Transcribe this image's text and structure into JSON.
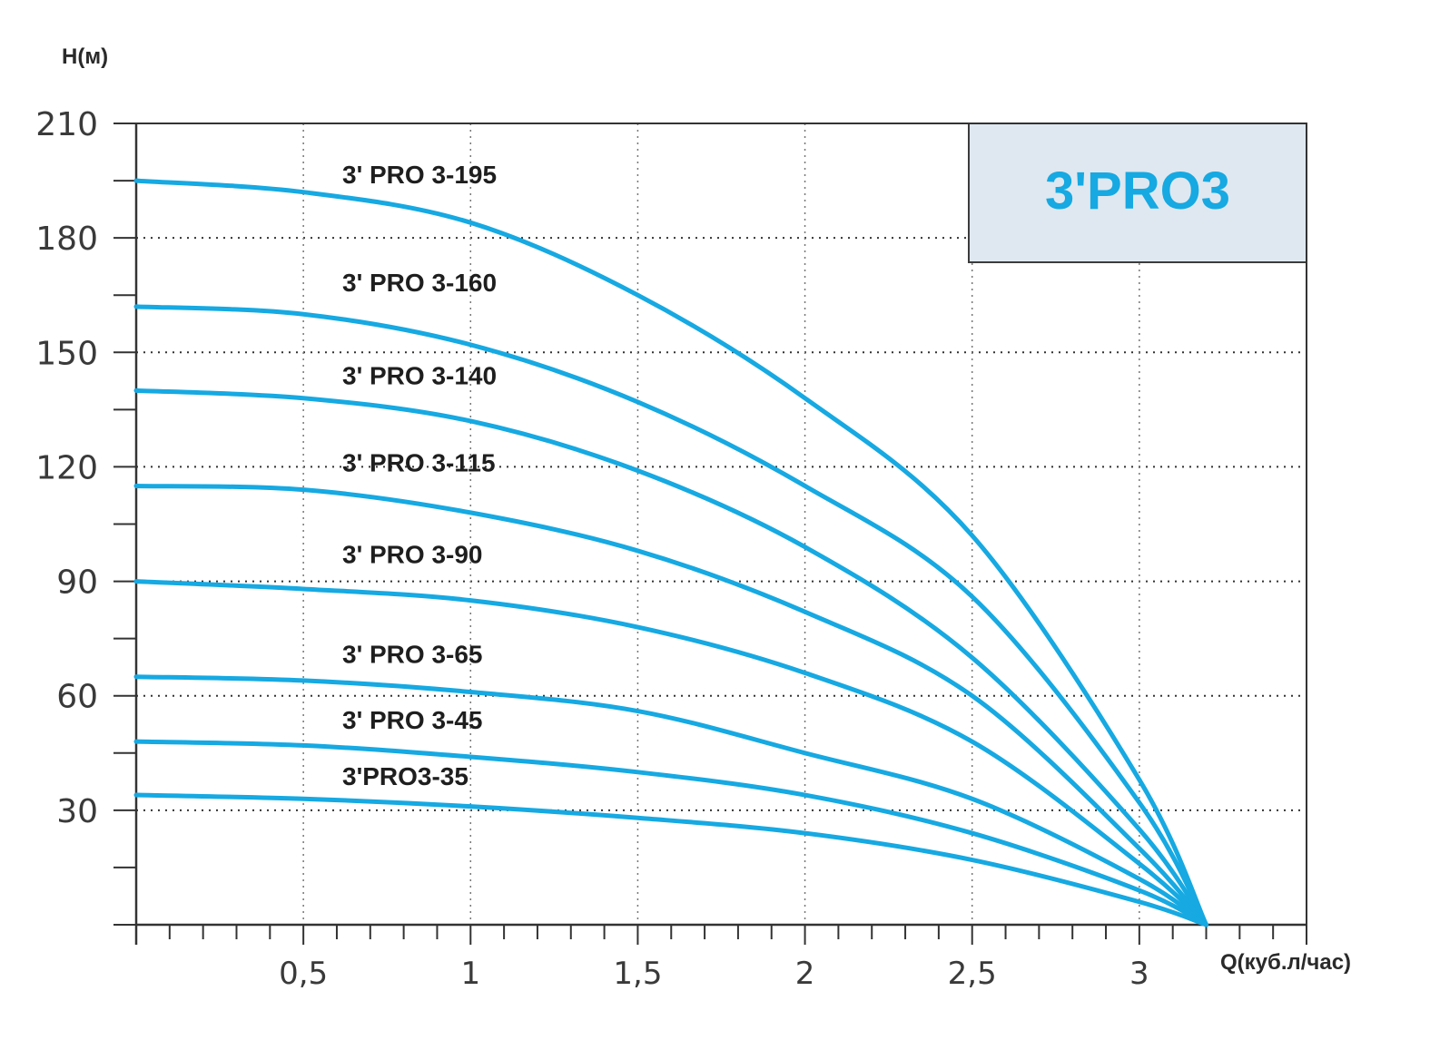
{
  "chart_data": {
    "type": "line",
    "title": "3'PRO3",
    "xlabel": "Q(куб.л/час)",
    "ylabel": "H(м)",
    "xlim": [
      0,
      3.5
    ],
    "ylim": [
      0,
      210
    ],
    "x_ticks": [
      0.5,
      1,
      1.5,
      2,
      2.5,
      3
    ],
    "x_tick_labels": [
      "0,5",
      "1",
      "1,5",
      "2",
      "2,5",
      "3"
    ],
    "y_ticks": [
      30,
      60,
      90,
      120,
      150,
      180,
      210
    ],
    "y_tick_labels": [
      "30",
      "60",
      "90",
      "120",
      "150",
      "180",
      "210"
    ],
    "grid": "dotted",
    "line_color": "#16a9e2",
    "title_color": "#16a9e2",
    "title_box_color": "#dfe8f0",
    "series": [
      {
        "name": "3' PRO 3-195",
        "x": [
          0,
          0.5,
          1,
          1.5,
          2,
          2.5,
          3,
          3.2
        ],
        "values": [
          195,
          192,
          184,
          165,
          138,
          102,
          38,
          0
        ]
      },
      {
        "name": "3' PRO 3-160",
        "x": [
          0,
          0.5,
          1,
          1.5,
          2,
          2.5,
          3,
          3.2
        ],
        "values": [
          162,
          160,
          152,
          137,
          115,
          86,
          32,
          0
        ]
      },
      {
        "name": "3' PRO 3-140",
        "x": [
          0,
          0.5,
          1,
          1.5,
          2,
          2.5,
          3,
          3.2
        ],
        "values": [
          140,
          138,
          132,
          119,
          99,
          70,
          25,
          0
        ]
      },
      {
        "name": "3' PRO 3-115",
        "x": [
          0,
          0.5,
          1,
          1.5,
          2,
          2.5,
          3,
          3.2
        ],
        "values": [
          115,
          114,
          108,
          98,
          82,
          60,
          20,
          0
        ]
      },
      {
        "name": "3' PRO 3-90",
        "x": [
          0,
          0.5,
          1,
          1.5,
          2,
          2.5,
          3,
          3.2
        ],
        "values": [
          90,
          88,
          85,
          78,
          66,
          48,
          16,
          0
        ]
      },
      {
        "name": "3' PRO 3-65",
        "x": [
          0,
          0.5,
          1,
          1.5,
          2,
          2.5,
          3,
          3.2
        ],
        "values": [
          65,
          64,
          61,
          56,
          45,
          33,
          12,
          0
        ]
      },
      {
        "name": "3' PRO 3-45",
        "x": [
          0,
          0.5,
          1,
          1.5,
          2,
          2.5,
          3,
          3.2
        ],
        "values": [
          48,
          47,
          44,
          40,
          34,
          24,
          9,
          0
        ]
      },
      {
        "name": "3'PRO3-35",
        "x": [
          0,
          0.5,
          1,
          1.5,
          2,
          2.5,
          3,
          3.2
        ],
        "values": [
          34,
          33,
          31,
          28,
          24,
          17,
          6,
          0
        ]
      }
    ]
  }
}
